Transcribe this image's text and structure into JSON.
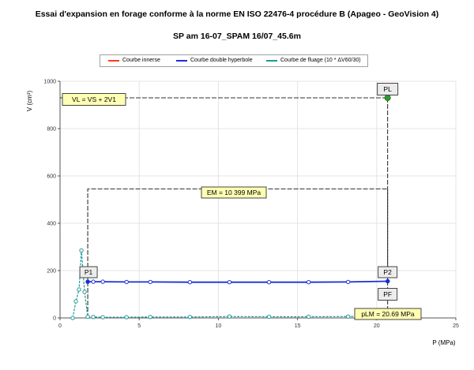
{
  "title": "Essai d'expansion en forage conforme à la norme EN ISO 22476-4 procédure B (Apageo - GeoVision 4)",
  "subtitle": "SP am 16-07_SPAM 16/07_45.6m",
  "legend": [
    {
      "label": "Courbe innerse",
      "color": "#ff3b1f"
    },
    {
      "label": "Courbe double hyperbole",
      "color": "#1a2fd6"
    },
    {
      "label": "Courbe de fluage (10 * ΔV60/30)",
      "color": "#1f9a98"
    }
  ],
  "chart_data": {
    "type": "line",
    "title": "Essai d'expansion en forage conforme à la norme EN ISO 22476-4 procédure B (Apageo - GeoVision 4)",
    "subtitle": "SP am 16-07_SPAM 16/07_45.6m",
    "xlabel": "P (MPa)",
    "ylabel": "V (cm³)",
    "xlim": [
      0,
      25
    ],
    "ylim": [
      0,
      1000
    ],
    "xticks": [
      0,
      5,
      10,
      15,
      20,
      25
    ],
    "yticks": [
      0,
      200,
      400,
      600,
      800,
      1000
    ],
    "grid": true,
    "legend_position": "top",
    "series": [
      {
        "name": "Courbe innerse",
        "x": [],
        "y": [],
        "color": "#ff3b1f"
      },
      {
        "name": "Courbe double hyperbole",
        "x": [
          1.75,
          2.1,
          2.7,
          4.2,
          5.7,
          8.2,
          10.7,
          13.2,
          15.7,
          18.2,
          20.7
        ],
        "y": [
          153,
          153,
          153,
          152,
          152,
          151,
          151,
          151,
          151,
          152,
          155
        ],
        "color": "#1a2fd6"
      },
      {
        "name": "Courbe de fluage (10 * ΔV60/30)",
        "x": [
          0.8,
          1.0,
          1.2,
          1.35,
          1.55,
          1.75,
          2.1,
          2.7,
          4.2,
          5.7,
          8.2,
          10.7,
          13.2,
          15.7,
          18.2,
          20.7
        ],
        "y": [
          0,
          70,
          120,
          285,
          110,
          5,
          4,
          3,
          3,
          4,
          4,
          6,
          5,
          5,
          6,
          8
        ],
        "color": "#1f9a98"
      }
    ],
    "annotations": {
      "VL_label": "VL = VS + 2V1",
      "VL_value": 930,
      "EM_label": "EM = 10 399 MPa",
      "EM_level": 545,
      "pLM_label": "pLM = 20.69 MPa",
      "pLM_value": 20.69,
      "P1_label": "P1",
      "P1": [
        1.75,
        153
      ],
      "P2_label": "P2",
      "P2": [
        20.69,
        155
      ],
      "PF_label": "PF",
      "PL_label": "PL",
      "PL": [
        20.69,
        930
      ]
    }
  }
}
